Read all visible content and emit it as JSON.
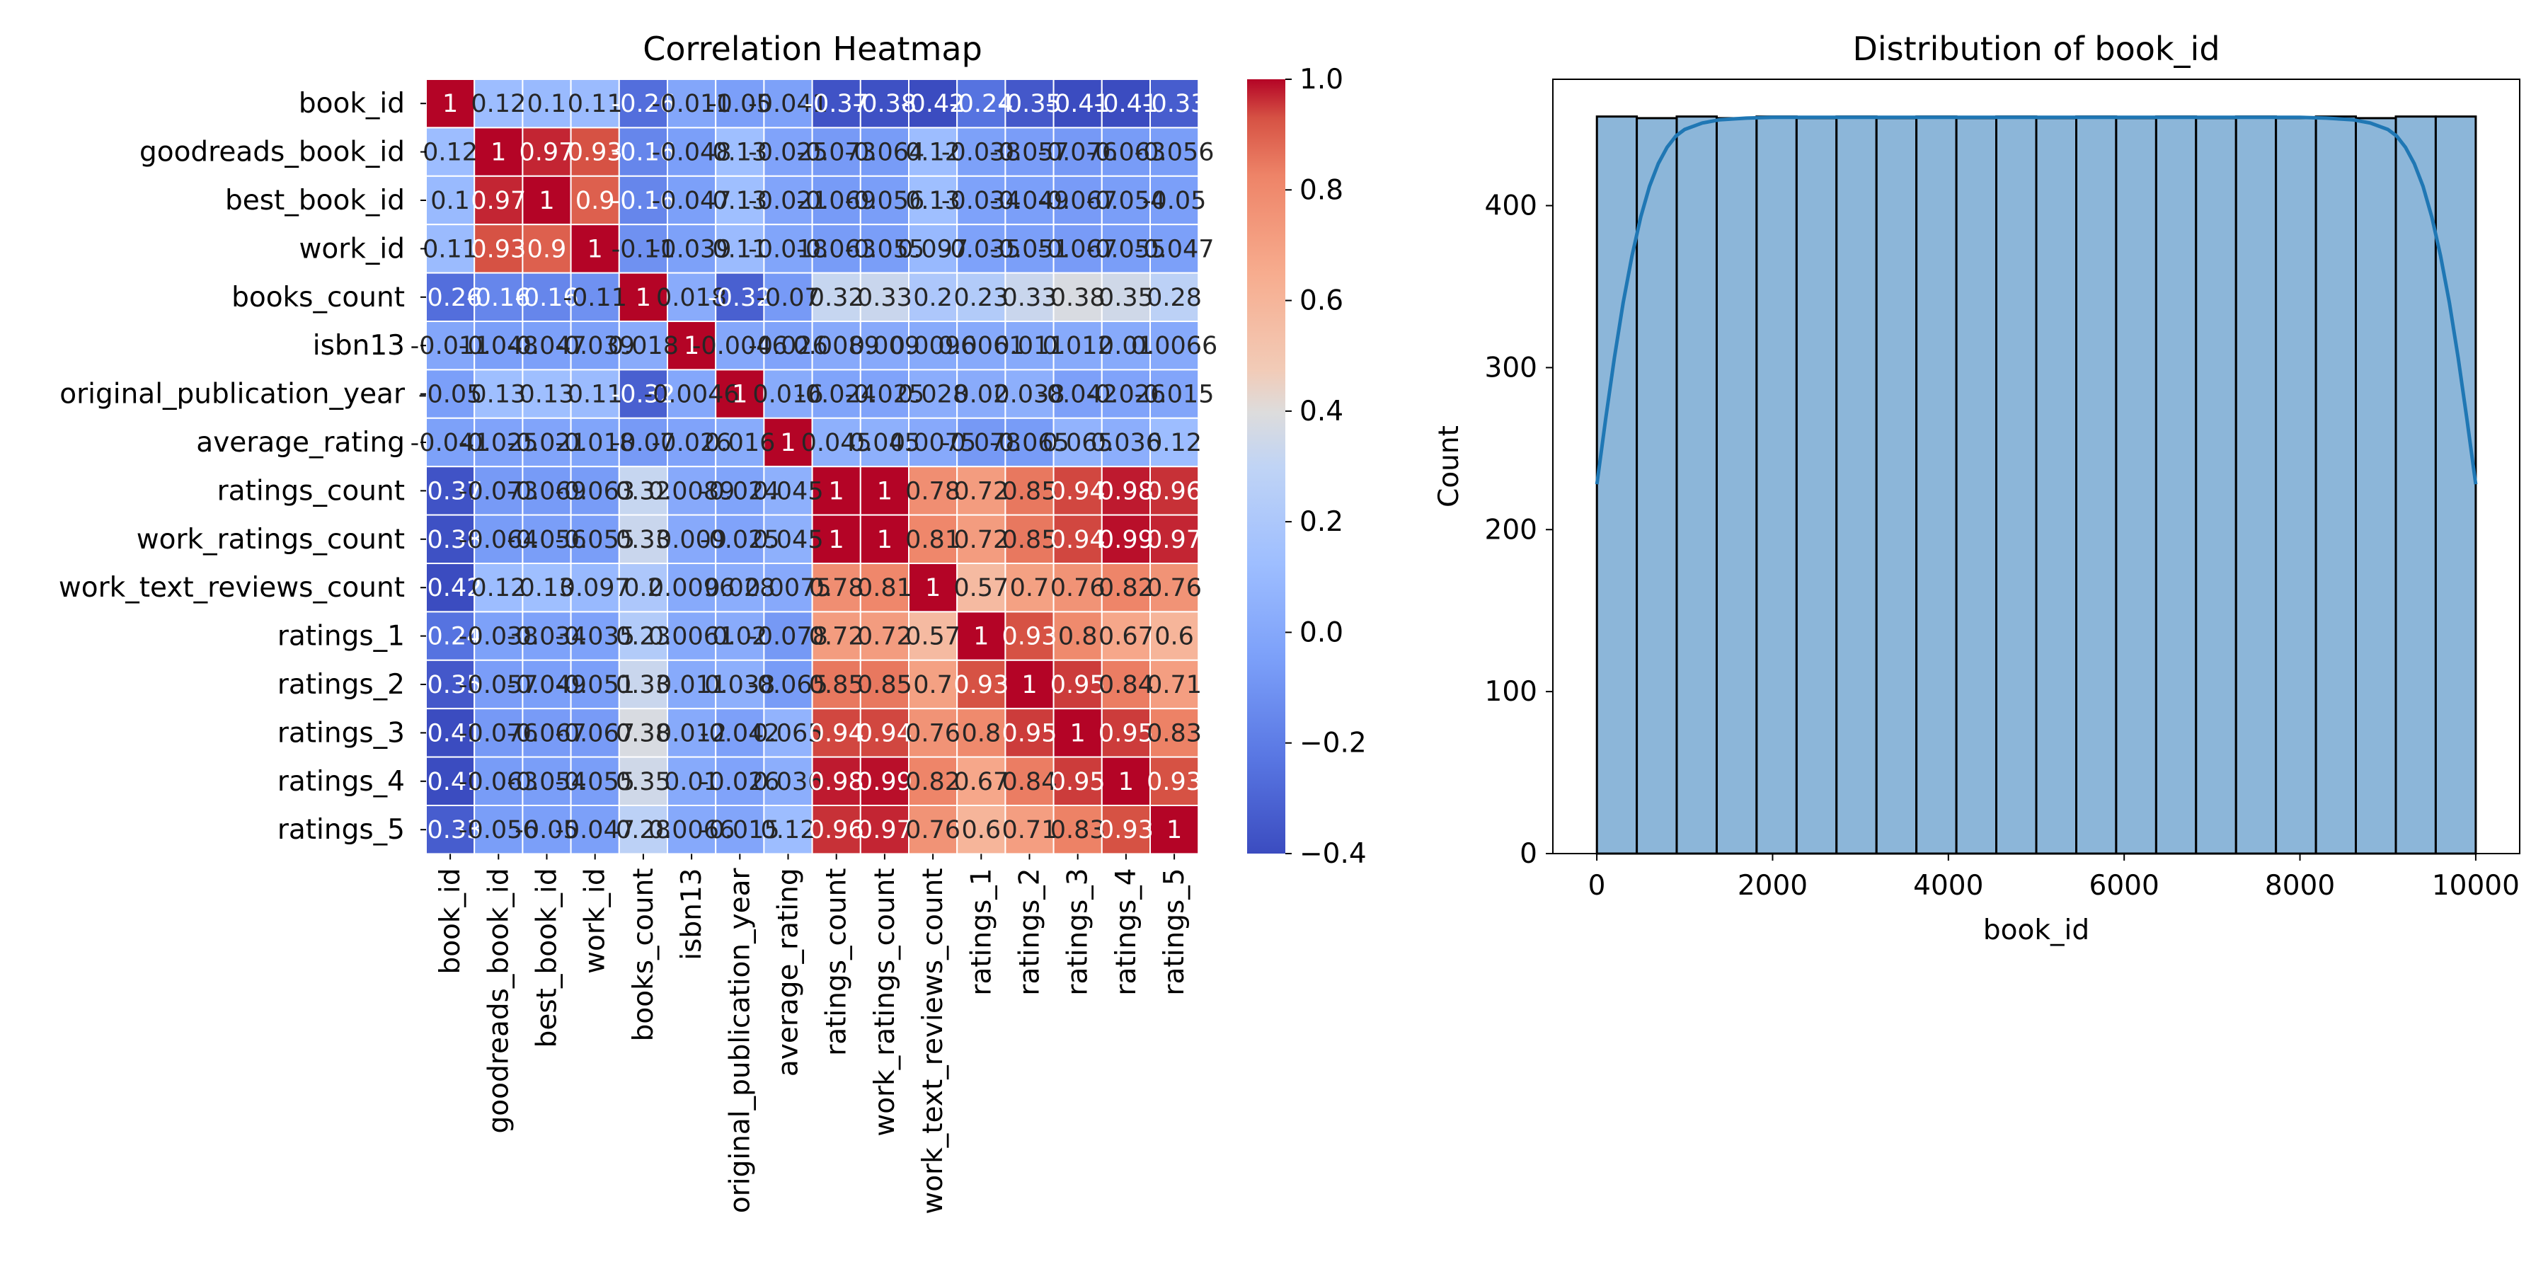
{
  "chart_data": [
    {
      "type": "heatmap",
      "title": "Correlation Heatmap",
      "cmap": "coolwarm",
      "vmin": -0.4,
      "vmax": 1.0,
      "colorbar_ticks": [
        "1.0",
        "0.8",
        "0.6",
        "0.4",
        "0.2",
        "0.0",
        "−0.2",
        "−0.4"
      ],
      "colorbar_tick_values": [
        1.0,
        0.8,
        0.6,
        0.4,
        0.2,
        0.0,
        -0.2,
        -0.4
      ],
      "labels": [
        "book_id",
        "goodreads_book_id",
        "best_book_id",
        "work_id",
        "books_count",
        "isbn13",
        "original_publication_year",
        "average_rating",
        "ratings_count",
        "work_ratings_count",
        "work_text_reviews_count",
        "ratings_1",
        "ratings_2",
        "ratings_3",
        "ratings_4",
        "ratings_5"
      ],
      "values": [
        [
          1,
          0.12,
          0.1,
          0.11,
          -0.26,
          -0.011,
          -0.05,
          -0.041,
          -0.37,
          -0.38,
          -0.42,
          -0.24,
          -0.35,
          -0.41,
          -0.41,
          -0.33
        ],
        [
          0.12,
          1,
          0.97,
          0.93,
          -0.16,
          -0.048,
          0.13,
          -0.025,
          -0.073,
          -0.064,
          0.12,
          -0.038,
          -0.057,
          -0.076,
          -0.063,
          -0.056
        ],
        [
          0.1,
          0.97,
          1,
          0.9,
          -0.16,
          -0.047,
          0.13,
          -0.021,
          -0.069,
          -0.056,
          0.13,
          -0.034,
          -0.049,
          -0.067,
          -0.054,
          -0.05
        ],
        [
          0.11,
          0.93,
          0.9,
          1,
          -0.11,
          -0.039,
          0.11,
          -0.018,
          -0.063,
          -0.055,
          0.097,
          -0.035,
          -0.051,
          -0.067,
          -0.055,
          -0.047
        ],
        [
          -0.26,
          -0.16,
          -0.16,
          -0.11,
          1,
          0.018,
          -0.32,
          -0.07,
          0.32,
          0.33,
          0.2,
          0.23,
          0.33,
          0.38,
          0.35,
          0.28
        ],
        [
          -0.011,
          -0.048,
          -0.047,
          -0.039,
          0.018,
          1,
          -0.0046,
          -0.026,
          0.0089,
          0.009,
          0.0096,
          0.0061,
          0.011,
          0.012,
          0.01,
          0.0066
        ],
        [
          -0.05,
          0.13,
          0.13,
          0.11,
          -0.32,
          -0.0046,
          1,
          0.016,
          -0.024,
          -0.025,
          0.028,
          0.02,
          0.038,
          -0.042,
          -0.026,
          -0.015
        ],
        [
          -0.041,
          -0.025,
          -0.021,
          -0.018,
          -0.07,
          -0.026,
          0.016,
          1,
          0.045,
          0.045,
          0.0075,
          -0.078,
          -0.065,
          0.065,
          0.036,
          0.12
        ],
        [
          -0.37,
          -0.073,
          -0.069,
          -0.063,
          0.32,
          0.0089,
          -0.024,
          0.045,
          1,
          1,
          0.78,
          0.72,
          0.85,
          0.94,
          0.98,
          0.96
        ],
        [
          -0.38,
          -0.064,
          -0.056,
          -0.055,
          0.33,
          0.009,
          -0.025,
          0.045,
          1,
          1,
          0.81,
          0.72,
          0.85,
          0.94,
          0.99,
          0.97
        ],
        [
          -0.42,
          0.12,
          0.13,
          0.097,
          0.2,
          0.0096,
          0.028,
          0.0075,
          0.78,
          0.81,
          1,
          0.57,
          0.7,
          0.76,
          0.82,
          0.76
        ],
        [
          -0.24,
          -0.038,
          -0.034,
          -0.035,
          0.23,
          0.0061,
          0.02,
          -0.078,
          0.72,
          0.72,
          0.57,
          1,
          0.93,
          0.8,
          0.67,
          0.6
        ],
        [
          -0.35,
          -0.057,
          -0.049,
          -0.051,
          0.33,
          0.011,
          0.038,
          -0.065,
          0.85,
          0.85,
          0.7,
          0.93,
          1,
          0.95,
          0.84,
          0.71
        ],
        [
          -0.41,
          -0.076,
          -0.067,
          -0.067,
          0.38,
          0.012,
          -0.042,
          0.065,
          0.94,
          0.94,
          0.76,
          0.8,
          0.95,
          1,
          0.95,
          0.83
        ],
        [
          -0.41,
          -0.063,
          -0.054,
          -0.055,
          0.35,
          0.01,
          -0.026,
          0.036,
          0.98,
          0.99,
          0.82,
          0.67,
          0.84,
          0.95,
          1,
          0.93
        ],
        [
          -0.33,
          -0.056,
          -0.05,
          -0.047,
          0.28,
          0.0066,
          -0.015,
          0.12,
          0.96,
          0.97,
          0.76,
          0.6,
          0.71,
          0.83,
          0.93,
          1
        ]
      ],
      "annotations": [
        [
          "1",
          "0.12",
          "0.1",
          "0.11",
          "-0.26",
          "-0.011",
          "-0.05",
          "-0.041",
          "-0.37",
          "-0.38",
          "-0.42",
          "-0.24",
          "-0.35",
          "-0.41",
          "-0.41",
          "-0.33"
        ],
        [
          "0.12",
          "1",
          "0.97",
          "0.93",
          "-0.16",
          "-0.048",
          "0.13",
          "-0.025",
          "-0.073",
          "-0.064",
          "0.12",
          "-0.038",
          "-0.057",
          "-0.076",
          "-0.063",
          "-0.056"
        ],
        [
          "0.1",
          "0.97",
          "1",
          "0.9",
          "-0.16",
          "-0.047",
          "0.13",
          "-0.021",
          "-0.069",
          "-0.056",
          "0.13",
          "-0.034",
          "-0.049",
          "-0.067",
          "-0.054",
          "-0.05"
        ],
        [
          "0.11",
          "0.93",
          "0.9",
          "1",
          "-0.11",
          "-0.039",
          "0.11",
          "-0.018",
          "-0.063",
          "-0.055",
          "0.097",
          "-0.035",
          "-0.051",
          "-0.067",
          "-0.055",
          "-0.047"
        ],
        [
          "-0.26",
          "-0.16",
          "-0.16",
          "-0.11",
          "1",
          "0.018",
          "-0.32",
          "-0.07",
          "0.32",
          "0.33",
          "0.2",
          "0.23",
          "0.33",
          "0.38",
          "0.35",
          "0.28"
        ],
        [
          "-0.011",
          "-0.048",
          "-0.047",
          "-0.039",
          "0.018",
          "1",
          "-0.0046",
          "-0.026",
          "0.0089",
          "0.009",
          "0.0096",
          "0.0061",
          "0.011",
          "0.012",
          "0.01",
          "0.0066"
        ],
        [
          "-0.05",
          "0.13",
          "0.13",
          "0.11",
          "-0.32",
          "-0.0046",
          "1",
          "0.016",
          "-0.024",
          "-0.025",
          "0.028",
          "0.02",
          "0.038",
          "-0.042",
          "-0.026",
          "-0.015"
        ],
        [
          "-0.041",
          "-0.025",
          "-0.021",
          "-0.018",
          "-0.07",
          "-0.026",
          "0.016",
          "1",
          "0.045",
          "0.045",
          "0.0075",
          "-0.078",
          "-0.065",
          "0.065",
          "0.036",
          "0.12"
        ],
        [
          "-0.37",
          "-0.073",
          "-0.069",
          "-0.063",
          "0.32",
          "0.0089",
          "-0.024",
          "0.045",
          "1",
          "1",
          "0.78",
          "0.72",
          "0.85",
          "0.94",
          "0.98",
          "0.96"
        ],
        [
          "-0.38",
          "-0.064",
          "-0.056",
          "-0.055",
          "0.33",
          "0.009",
          "-0.025",
          "0.045",
          "1",
          "1",
          "0.81",
          "0.72",
          "0.85",
          "0.94",
          "0.99",
          "0.97"
        ],
        [
          "-0.42",
          "0.12",
          "0.13",
          "0.097",
          "0.2",
          "0.0096",
          "0.028",
          "0.0075",
          "0.78",
          "0.81",
          "1",
          "0.57",
          "0.7",
          "0.76",
          "0.82",
          "0.76"
        ],
        [
          "-0.24",
          "-0.038",
          "-0.034",
          "-0.035",
          "0.23",
          "0.0061",
          "0.02",
          "-0.078",
          "0.72",
          "0.72",
          "0.57",
          "1",
          "0.93",
          "0.8",
          "0.67",
          "0.6"
        ],
        [
          "-0.35",
          "-0.057",
          "-0.049",
          "-0.051",
          "0.33",
          "0.011",
          "0.038",
          "-0.065",
          "0.85",
          "0.85",
          "0.7",
          "0.93",
          "1",
          "0.95",
          "0.84",
          "0.71"
        ],
        [
          "-0.41",
          "-0.076",
          "-0.067",
          "-0.067",
          "0.38",
          "0.012",
          "-0.042",
          "0.065",
          "0.94",
          "0.94",
          "0.76",
          "0.8",
          "0.95",
          "1",
          "0.95",
          "0.83"
        ],
        [
          "-0.41",
          "-0.063",
          "-0.054",
          "-0.055",
          "0.35",
          "0.01",
          "-0.026",
          "0.036",
          "0.98",
          "0.99",
          "0.82",
          "0.67",
          "0.84",
          "0.95",
          "1",
          "0.93"
        ],
        [
          "-0.33",
          "-0.056",
          "-0.05",
          "-0.047",
          "0.28",
          "0.0066",
          "-0.015",
          "0.12",
          "0.96",
          "0.97",
          "0.76",
          "0.6",
          "0.71",
          "0.83",
          "0.93",
          "1"
        ]
      ]
    },
    {
      "type": "bar",
      "subtype": "histogram with kde",
      "title": "Distribution of book_id",
      "xlabel": "book_id",
      "ylabel": "Count",
      "xlim": [
        -500,
        10500
      ],
      "ylim": [
        0,
        478
      ],
      "xticks": [
        0,
        2000,
        4000,
        6000,
        8000,
        10000
      ],
      "yticks": [
        0,
        100,
        200,
        300,
        400
      ],
      "bin_edges": [
        1,
        455,
        909,
        1364,
        1818,
        2273,
        2727,
        3182,
        3636,
        4091,
        4545,
        5000,
        5455,
        5909,
        6364,
        6818,
        7273,
        7727,
        8182,
        8636,
        9091,
        9545,
        10000
      ],
      "counts": [
        455,
        454,
        455,
        454,
        455,
        454,
        455,
        454,
        455,
        454,
        455,
        454,
        455,
        454,
        455,
        454,
        455,
        454,
        455,
        454,
        455,
        455
      ],
      "bar_color": "#8cb6d9",
      "kde_color": "#1f77b4",
      "kde": {
        "x": [
          1,
          100,
          200,
          300,
          400,
          500,
          600,
          700,
          800,
          900,
          1000,
          1200,
          1400,
          1700,
          2000,
          5000,
          8000,
          8300,
          8600,
          8800,
          9000,
          9100,
          9200,
          9300,
          9400,
          9500,
          9600,
          9700,
          9800,
          9900,
          10000
        ],
        "y": [
          228,
          268,
          306,
          340,
          369,
          393,
          412,
          426,
          436,
          443,
          447,
          451,
          453,
          454,
          454.5,
          454.5,
          454.5,
          454,
          453,
          451,
          447,
          443,
          436,
          426,
          412,
          393,
          369,
          340,
          306,
          268,
          228
        ]
      }
    }
  ]
}
